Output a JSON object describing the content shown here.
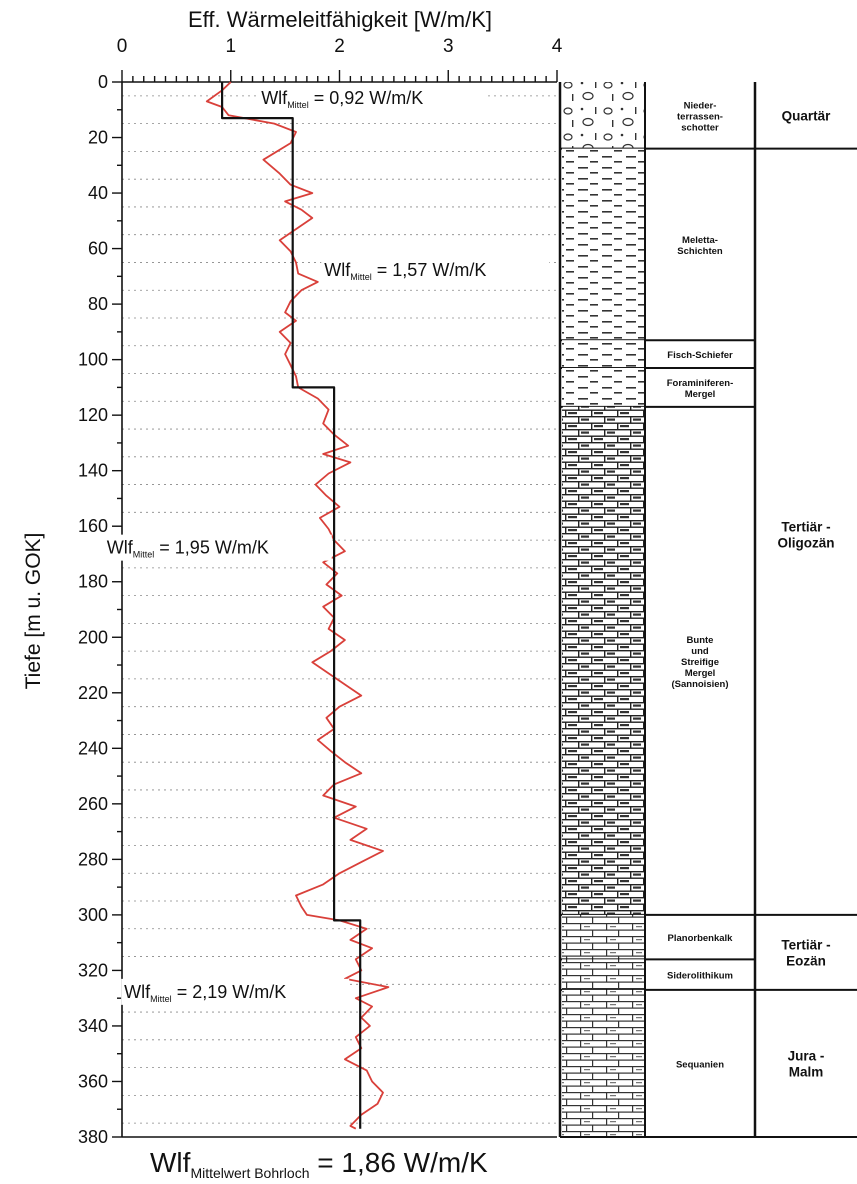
{
  "chart_data": {
    "type": "line",
    "xlabel": "Eff. Wärmeleitfähigkeit [W/m/K]",
    "ylabel": "Tiefe [m u. GOK]",
    "xlim": [
      0,
      4
    ],
    "ylim": [
      0,
      380
    ],
    "y_inverted": true,
    "x_ticks": [
      "0",
      "1",
      "2",
      "3",
      "4"
    ],
    "y_ticks": [
      "0",
      "20",
      "40",
      "60",
      "80",
      "100",
      "120",
      "140",
      "160",
      "180",
      "200",
      "220",
      "240",
      "260",
      "280",
      "300",
      "320",
      "340",
      "360",
      "380"
    ],
    "grid": "horizontal-dashed",
    "series": [
      {
        "color": "#d9403a",
        "points": [
          [
            1.0,
            0
          ],
          [
            0.92,
            3
          ],
          [
            0.78,
            7
          ],
          [
            0.92,
            9
          ],
          [
            0.98,
            12
          ],
          [
            1.4,
            15
          ],
          [
            1.6,
            18
          ],
          [
            1.55,
            22
          ],
          [
            1.3,
            28
          ],
          [
            1.45,
            33
          ],
          [
            1.55,
            37
          ],
          [
            1.75,
            40
          ],
          [
            1.5,
            43
          ],
          [
            1.65,
            46
          ],
          [
            1.75,
            49
          ],
          [
            1.6,
            53
          ],
          [
            1.45,
            57
          ],
          [
            1.55,
            61
          ],
          [
            1.6,
            65
          ],
          [
            1.62,
            69
          ],
          [
            1.8,
            72
          ],
          [
            1.65,
            75
          ],
          [
            1.55,
            79
          ],
          [
            1.5,
            83
          ],
          [
            1.6,
            86
          ],
          [
            1.45,
            90
          ],
          [
            1.55,
            94
          ],
          [
            1.5,
            98
          ],
          [
            1.55,
            102
          ],
          [
            1.6,
            106
          ],
          [
            1.62,
            110
          ],
          [
            1.8,
            114
          ],
          [
            1.9,
            118
          ],
          [
            1.85,
            123
          ],
          [
            1.95,
            127
          ],
          [
            2.08,
            131
          ],
          [
            1.85,
            134
          ],
          [
            2.1,
            137
          ],
          [
            1.9,
            141
          ],
          [
            1.78,
            145
          ],
          [
            1.88,
            149
          ],
          [
            2.0,
            153
          ],
          [
            1.82,
            157
          ],
          [
            1.9,
            161
          ],
          [
            1.95,
            165
          ],
          [
            2.05,
            169
          ],
          [
            1.85,
            173
          ],
          [
            1.98,
            177
          ],
          [
            1.88,
            181
          ],
          [
            2.02,
            185
          ],
          [
            1.85,
            189
          ],
          [
            1.95,
            193
          ],
          [
            1.9,
            197
          ],
          [
            2.05,
            201
          ],
          [
            1.92,
            205
          ],
          [
            1.75,
            209
          ],
          [
            1.9,
            213
          ],
          [
            2.05,
            217
          ],
          [
            2.2,
            221
          ],
          [
            2.0,
            225
          ],
          [
            1.88,
            229
          ],
          [
            1.95,
            233
          ],
          [
            1.8,
            237
          ],
          [
            1.92,
            241
          ],
          [
            2.05,
            245
          ],
          [
            2.2,
            249
          ],
          [
            1.95,
            253
          ],
          [
            1.85,
            257
          ],
          [
            2.15,
            261
          ],
          [
            1.95,
            265
          ],
          [
            2.25,
            269
          ],
          [
            2.1,
            273
          ],
          [
            2.4,
            277
          ],
          [
            2.2,
            281
          ],
          [
            2.0,
            285
          ],
          [
            1.85,
            289
          ],
          [
            1.6,
            293
          ],
          [
            1.65,
            297
          ],
          [
            1.7,
            300
          ],
          [
            2.0,
            302
          ],
          [
            2.25,
            305
          ],
          [
            2.1,
            309
          ],
          [
            2.3,
            312
          ],
          [
            2.15,
            316
          ],
          [
            2.2,
            320
          ],
          [
            2.05,
            323
          ],
          [
            2.45,
            326
          ],
          [
            2.15,
            330
          ],
          [
            2.3,
            333
          ],
          [
            2.2,
            337
          ],
          [
            2.28,
            340
          ],
          [
            2.15,
            344
          ],
          [
            2.2,
            348
          ],
          [
            2.05,
            352
          ],
          [
            2.25,
            356
          ],
          [
            2.3,
            360
          ],
          [
            2.4,
            364
          ],
          [
            2.35,
            368
          ],
          [
            2.2,
            372
          ],
          [
            2.1,
            376
          ],
          [
            2.15,
            377
          ]
        ]
      },
      {
        "color": "#111111",
        "points": [
          [
            0.92,
            0
          ],
          [
            0.92,
            13
          ],
          [
            1.57,
            13
          ],
          [
            1.57,
            110
          ],
          [
            1.95,
            110
          ],
          [
            1.95,
            302
          ],
          [
            2.19,
            302
          ],
          [
            2.19,
            377
          ]
        ]
      }
    ],
    "annotations": [
      {
        "pre": "Wlf",
        "sub": "Mittel",
        "post": "= 0,92 W/m/K",
        "x": 1.28,
        "y": 5
      },
      {
        "pre": "Wlf",
        "sub": "Mittel",
        "post": "= 1,57 W/m/K",
        "x": 1.86,
        "y": 67
      },
      {
        "pre": "Wlf",
        "sub": "Mittel",
        "post": "= 1,95 W/m/K",
        "x": -0.14,
        "y": 167
      },
      {
        "pre": "Wlf",
        "sub": "Mittel",
        "post": "= 2,19 W/m/K",
        "x": 0.02,
        "y": 327
      }
    ],
    "footer": {
      "pre": "Wlf",
      "sub": "Mittelwert Bohrloch",
      "post": "= 1,86 W/m/K"
    },
    "strat_layers": [
      {
        "name": "Nieder-\nterrassen-\nschotter",
        "top": 0,
        "bottom": 24,
        "pattern": "gravel"
      },
      {
        "name": "Meletta-\nSchichten",
        "top": 24,
        "bottom": 93,
        "pattern": "clay"
      },
      {
        "name": "Fisch-Schiefer",
        "top": 93,
        "bottom": 103,
        "pattern": "clay"
      },
      {
        "name": "Foraminiferen-\nMergel",
        "top": 103,
        "bottom": 117,
        "pattern": "clay"
      },
      {
        "name": "Bunte\nund\nStreifige\nMergel\n(Sannoisien)",
        "top": 117,
        "bottom": 300,
        "pattern": "marl"
      },
      {
        "name": "Planorbenkalk",
        "top": 300,
        "bottom": 316,
        "pattern": "lime"
      },
      {
        "name": "Siderolithikum",
        "top": 316,
        "bottom": 327,
        "pattern": "lime"
      },
      {
        "name": "Sequanien",
        "top": 327,
        "bottom": 380,
        "pattern": "lime"
      }
    ],
    "periods": [
      {
        "name": "Quartär",
        "top": 0,
        "bottom": 24
      },
      {
        "name": "Tertiär -\nOligozän",
        "top": 24,
        "bottom": 300
      },
      {
        "name": "Tertiär -\nEozän",
        "top": 300,
        "bottom": 327
      },
      {
        "name": "Jura -\nMalm",
        "top": 327,
        "bottom": 380
      }
    ]
  }
}
